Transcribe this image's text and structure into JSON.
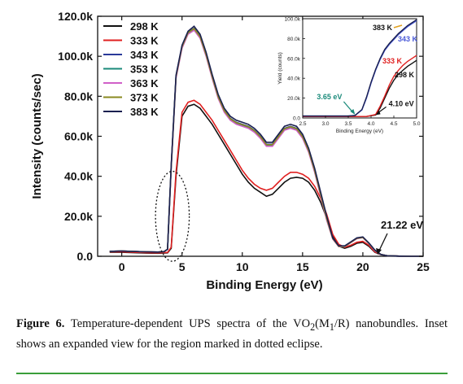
{
  "chart_data": [
    {
      "type": "line",
      "xlabel": "Binding Energy (eV)",
      "ylabel": "Intensity (counts/sec)",
      "xlim": [
        -2,
        25
      ],
      "ylim": [
        0,
        120000
      ],
      "xticks": [
        "0",
        "5",
        "10",
        "15",
        "20",
        "25"
      ],
      "yticks": [
        "0.0",
        "20.0k",
        "40.0k",
        "60.0k",
        "80.0k",
        "100.0k",
        "120.0k"
      ],
      "legend_position": "top-left",
      "series": [
        {
          "name": "298 K",
          "color": "#111111",
          "x": [
            -1,
            0,
            1,
            2,
            3,
            3.8,
            4.1,
            4.5,
            5,
            5.5,
            6,
            6.5,
            7,
            7.5,
            8,
            8.5,
            9,
            9.5,
            10,
            10.5,
            11,
            11.5,
            12,
            12.5,
            13,
            13.5,
            14,
            14.5,
            15,
            15.5,
            16,
            16.5,
            17,
            17.5,
            18,
            18.5,
            19,
            19.5,
            20,
            20.5,
            21,
            21.5,
            22,
            23,
            24,
            25
          ],
          "y": [
            2000,
            2000,
            1800,
            1600,
            1500,
            1700,
            4000,
            40000,
            70000,
            75000,
            76000,
            74000,
            70000,
            66000,
            61000,
            56000,
            51000,
            46000,
            41000,
            37000,
            34000,
            32000,
            30000,
            31000,
            34000,
            37000,
            39000,
            39500,
            39000,
            37000,
            33000,
            27000,
            19000,
            10000,
            5000,
            4000,
            5000,
            6500,
            7000,
            5000,
            2000,
            800,
            300,
            100,
            0,
            0
          ]
        },
        {
          "name": "333 K",
          "color": "#e02020",
          "x": [
            -1,
            0,
            1,
            2,
            3,
            3.8,
            4.1,
            4.5,
            5,
            5.5,
            6,
            6.5,
            7,
            7.5,
            8,
            8.5,
            9,
            9.5,
            10,
            10.5,
            11,
            11.5,
            12,
            12.5,
            13,
            13.5,
            14,
            14.5,
            15,
            15.5,
            16,
            16.5,
            17,
            17.5,
            18,
            18.5,
            19,
            19.5,
            20,
            20.5,
            21,
            21.5,
            22,
            23,
            24,
            25
          ],
          "y": [
            2200,
            2200,
            2000,
            1800,
            1700,
            1900,
            4500,
            42000,
            72000,
            77000,
            78000,
            76000,
            72000,
            68000,
            63000,
            58000,
            53000,
            48000,
            43000,
            39000,
            36000,
            34000,
            33000,
            34000,
            37000,
            40000,
            42000,
            42000,
            41000,
            39000,
            35000,
            29000,
            21000,
            11000,
            6000,
            4500,
            5500,
            7000,
            7500,
            5500,
            2200,
            900,
            300,
            100,
            0,
            0
          ]
        },
        {
          "name": "343 K",
          "color": "#2a3a9a",
          "x": [
            -1,
            0,
            1,
            2,
            3,
            3.5,
            3.8,
            4.1,
            4.5,
            5,
            5.5,
            6,
            6.5,
            7,
            7.5,
            8,
            8.5,
            9,
            9.5,
            10,
            10.5,
            11,
            11.5,
            12,
            12.5,
            13,
            13.5,
            14,
            14.5,
            15,
            15.5,
            16,
            16.5,
            17,
            17.5,
            18,
            18.5,
            19,
            19.5,
            20,
            20.5,
            21,
            21.5,
            22,
            23,
            24,
            25
          ],
          "y": [
            2500,
            2600,
            2400,
            2200,
            2100,
            2300,
            3500,
            45000,
            90000,
            105000,
            112000,
            114000,
            110000,
            101000,
            90000,
            80000,
            73000,
            69000,
            67000,
            66000,
            65000,
            63000,
            60000,
            56000,
            56000,
            60000,
            64000,
            65000,
            64000,
            60000,
            53000,
            43000,
            31000,
            19000,
            9000,
            5000,
            5000,
            7000,
            9000,
            9500,
            6500,
            3000,
            900,
            300,
            100,
            0,
            0
          ]
        },
        {
          "name": "353 K",
          "color": "#1a8a7a",
          "x": [
            -1,
            0,
            1,
            2,
            3,
            3.5,
            3.8,
            4.1,
            4.5,
            5,
            5.5,
            6,
            6.5,
            7,
            7.5,
            8,
            8.5,
            9,
            9.5,
            10,
            10.5,
            11,
            11.5,
            12,
            12.5,
            13,
            13.5,
            14,
            14.5,
            15,
            15.5,
            16,
            16.5,
            17,
            17.5,
            18,
            18.5,
            19,
            19.5,
            20,
            20.5,
            21,
            21.5,
            22,
            23,
            24,
            25
          ],
          "y": [
            2500,
            2600,
            2400,
            2200,
            2100,
            2300,
            3500,
            44500,
            89500,
            104500,
            111500,
            113500,
            109500,
            100500,
            89500,
            79500,
            72500,
            68500,
            66500,
            65500,
            64500,
            62500,
            59500,
            55500,
            55500,
            59500,
            63500,
            64500,
            63500,
            59500,
            52500,
            42500,
            30500,
            18500,
            8800,
            4900,
            4900,
            6900,
            8900,
            9400,
            6400,
            2900,
            900,
            300,
            100,
            0,
            0
          ]
        },
        {
          "name": "363 K",
          "color": "#d060c8",
          "x": [
            -1,
            0,
            1,
            2,
            3,
            3.5,
            3.8,
            4.1,
            4.5,
            5,
            5.5,
            6,
            6.5,
            7,
            7.5,
            8,
            8.5,
            9,
            9.5,
            10,
            10.5,
            11,
            11.5,
            12,
            12.5,
            13,
            13.5,
            14,
            14.5,
            15,
            15.5,
            16,
            16.5,
            17,
            17.5,
            18,
            18.5,
            19,
            19.5,
            20,
            20.5,
            21,
            21.5,
            22,
            23,
            24,
            25
          ],
          "y": [
            2500,
            2600,
            2400,
            2200,
            2100,
            2300,
            3500,
            44000,
            89000,
            104000,
            111000,
            113000,
            109000,
            100000,
            89000,
            79000,
            72000,
            68000,
            66000,
            65000,
            64000,
            62000,
            59000,
            55000,
            55000,
            59000,
            63000,
            64000,
            63000,
            59000,
            52000,
            42000,
            30000,
            18000,
            8600,
            4800,
            4800,
            6800,
            8800,
            9300,
            6300,
            2800,
            900,
            300,
            100,
            0,
            0
          ]
        },
        {
          "name": "373 K",
          "color": "#8a8a20",
          "x": [
            -1,
            0,
            1,
            2,
            3,
            3.5,
            3.8,
            4.1,
            4.5,
            5,
            5.5,
            6,
            6.5,
            7,
            7.5,
            8,
            8.5,
            9,
            9.5,
            10,
            10.5,
            11,
            11.5,
            12,
            12.5,
            13,
            13.5,
            14,
            14.5,
            15,
            15.5,
            16,
            16.5,
            17,
            17.5,
            18,
            18.5,
            19,
            19.5,
            20,
            20.5,
            21,
            21.5,
            22,
            23,
            24,
            25
          ],
          "y": [
            2500,
            2600,
            2400,
            2200,
            2100,
            2300,
            3500,
            44800,
            89800,
            104800,
            111800,
            113800,
            109800,
            100800,
            89800,
            79800,
            72800,
            68800,
            66800,
            65800,
            64800,
            62800,
            59800,
            55800,
            55800,
            59800,
            63800,
            64800,
            63800,
            59800,
            52800,
            42800,
            30800,
            18800,
            8900,
            4950,
            4950,
            6950,
            8950,
            9450,
            6450,
            2950,
            900,
            300,
            100,
            0,
            0
          ]
        },
        {
          "name": "383 K",
          "color": "#1a2050",
          "x": [
            -1,
            0,
            1,
            2,
            3,
            3.5,
            3.8,
            4.1,
            4.5,
            5,
            5.5,
            6,
            6.5,
            7,
            7.5,
            8,
            8.5,
            9,
            9.5,
            10,
            10.5,
            11,
            11.5,
            12,
            12.5,
            13,
            13.5,
            14,
            14.5,
            15,
            15.5,
            16,
            16.5,
            17,
            17.5,
            18,
            18.5,
            19,
            19.5,
            20,
            20.5,
            21,
            21.5,
            22,
            23,
            24,
            25
          ],
          "y": [
            2500,
            2600,
            2400,
            2200,
            2100,
            2300,
            3500,
            45500,
            90500,
            105500,
            112500,
            115000,
            111000,
            102000,
            91000,
            81000,
            74000,
            70000,
            68000,
            67000,
            66000,
            64000,
            61000,
            57000,
            57000,
            61000,
            65000,
            66000,
            65000,
            61000,
            54000,
            44000,
            32000,
            20000,
            9200,
            5200,
            5200,
            7200,
            9200,
            9700,
            6700,
            3100,
            900,
            300,
            100,
            0,
            0
          ]
        }
      ],
      "annotations": [
        {
          "text": "21.22 eV",
          "x": 21.22,
          "y": 0
        }
      ],
      "highlight": {
        "shape": "dotted-ellipse",
        "center": [
          4.2,
          20000
        ],
        "span_x": 2.8,
        "span_y": 45000
      }
    },
    {
      "type": "line",
      "inset": true,
      "xlabel": "Binding Energy (eV)",
      "ylabel": "Yield (counts)",
      "xlim": [
        2.5,
        5.0
      ],
      "ylim": [
        0,
        100000
      ],
      "xticks": [
        "2.5",
        "3.0",
        "3.5",
        "4.0",
        "4.5",
        "5.0"
      ],
      "yticks": [
        "0.0",
        "20.0k",
        "40.0k",
        "60.0k",
        "80.0k",
        "100.0k"
      ],
      "series": [
        {
          "name": "298 K",
          "color": "#111111",
          "x": [
            2.5,
            3.0,
            3.5,
            3.9,
            4.1,
            4.2,
            4.3,
            4.4,
            4.5,
            4.6,
            4.7,
            4.8,
            4.9,
            5.0
          ],
          "y": [
            1500,
            1500,
            1500,
            1500,
            3000,
            10000,
            20000,
            30000,
            38000,
            44000,
            48000,
            52000,
            55000,
            58000
          ]
        },
        {
          "name": "333 K",
          "color": "#e02020",
          "x": [
            2.5,
            3.0,
            3.5,
            3.9,
            4.1,
            4.2,
            4.3,
            4.4,
            4.5,
            4.6,
            4.7,
            4.8,
            4.9,
            5.0
          ],
          "y": [
            1500,
            1500,
            1500,
            1500,
            3500,
            12000,
            22000,
            33000,
            42000,
            48000,
            53000,
            57000,
            60000,
            63000
          ]
        },
        {
          "name": "343 K",
          "color": "#4a5ad8",
          "x": [
            2.5,
            3.0,
            3.5,
            3.65,
            3.8,
            3.9,
            4.0,
            4.1,
            4.2,
            4.3,
            4.4,
            4.5,
            4.6,
            4.7,
            4.8,
            4.9,
            5.0
          ],
          "y": [
            2000,
            2000,
            2000,
            2500,
            8000,
            20000,
            35000,
            48000,
            59000,
            68000,
            74000,
            79000,
            84000,
            88000,
            92000,
            95000,
            98000
          ]
        },
        {
          "name": "383 K",
          "color": "#1a2050",
          "x": [
            2.5,
            3.0,
            3.5,
            3.65,
            3.8,
            3.9,
            4.0,
            4.1,
            4.2,
            4.3,
            4.4,
            4.5,
            4.6,
            4.7,
            4.8,
            4.9,
            5.0
          ],
          "y": [
            2000,
            2000,
            2000,
            2600,
            8500,
            21000,
            36000,
            49000,
            60000,
            69000,
            75000,
            80000,
            85000,
            89000,
            93000,
            96000,
            99000
          ]
        }
      ],
      "annotations": [
        {
          "text": "3.65 eV",
          "x": 3.65,
          "y": 2500,
          "color": "#1a8a7a"
        },
        {
          "text": "4.10 eV",
          "x": 4.1,
          "y": 3000,
          "color": "#111111"
        },
        {
          "text": "383 K",
          "color": "#111111"
        },
        {
          "text": "343 K",
          "color": "#4a5ad8"
        },
        {
          "text": "333 K",
          "color": "#e02020"
        },
        {
          "text": "298 K",
          "color": "#111111"
        }
      ]
    }
  ],
  "caption": {
    "label": "Figure 6.",
    "text_a": " Temperature-dependent UPS spectra of the VO",
    "sub_a": "2",
    "text_b": "(M",
    "sub_b": "1",
    "text_c": "/R) nanobundles. Inset shows an expanded view for the region marked in dotted eclipse."
  }
}
